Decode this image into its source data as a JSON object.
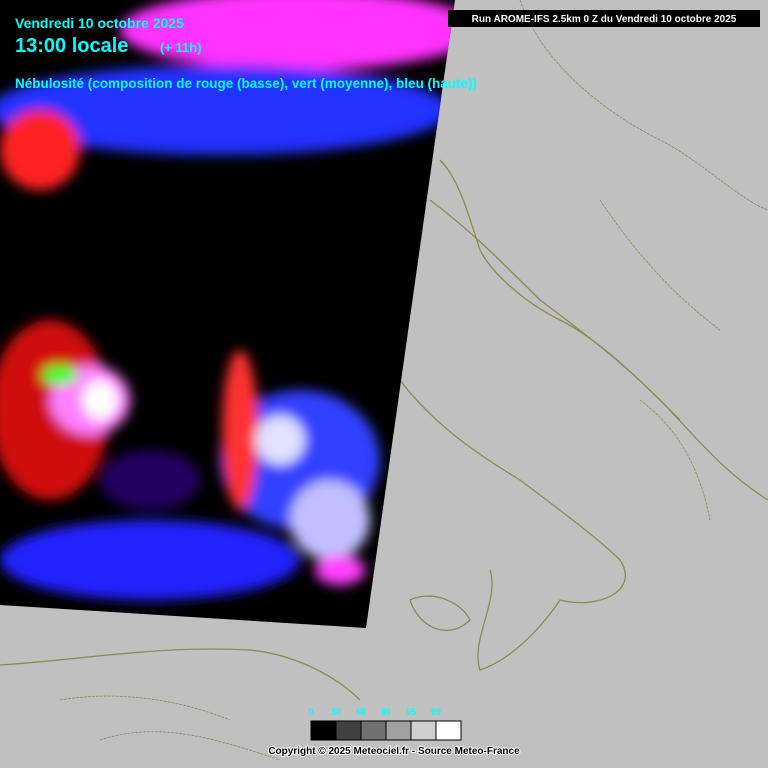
{
  "header": {
    "date": "Vendredi 10 octobre 2025",
    "time": "13:00 locale",
    "offset": "(+ 11h)",
    "description": "Nébulosité (composition de rouge (basse), vert (moyenne), bleu (haute))"
  },
  "run": "Run AROME-IFS 2.5km 0 Z du Vendredi 10 octobre 2025",
  "legend": {
    "labels": [
      0,
      30,
      60,
      90,
      95,
      99
    ]
  },
  "footer": "Copyright © 2025 Meteociel.fr - Source Meteo-France"
}
